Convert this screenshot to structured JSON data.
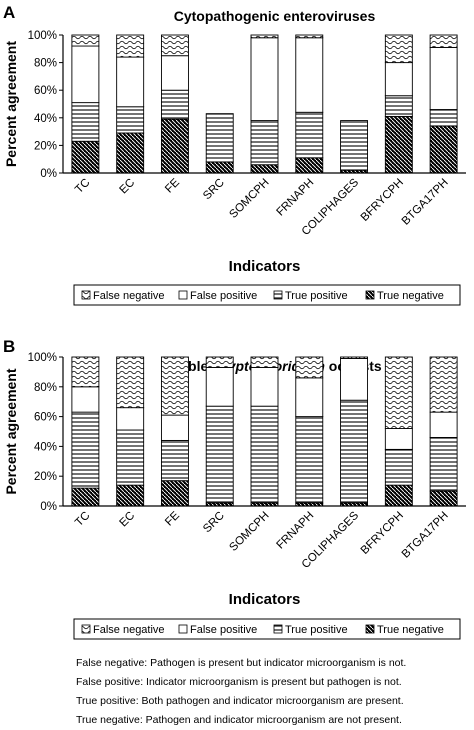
{
  "chart_data": [
    {
      "type": "bar",
      "stacked": true,
      "panel": "A",
      "title": "Cytopathogenic enteroviruses",
      "xlabel": "Indicators",
      "ylabel": "Percent agreement",
      "ylim": [
        0,
        100
      ],
      "yticks": [
        "0%",
        "20%",
        "40%",
        "60%",
        "80%",
        "100%"
      ],
      "categories": [
        "TC",
        "EC",
        "FE",
        "SRC",
        "SOMCPH",
        "FRNAPH",
        "COLIPHAGES",
        "BFRYCPH",
        "BTGA17PH"
      ],
      "series": [
        {
          "name": "True negative",
          "values": [
            23,
            29,
            39,
            8,
            6,
            11,
            2,
            41,
            34
          ]
        },
        {
          "name": "True positive",
          "values": [
            28,
            19,
            21,
            35,
            32,
            33,
            36,
            15,
            12
          ]
        },
        {
          "name": "False positive",
          "values": [
            41,
            36,
            25,
            0,
            60,
            54,
            0,
            24,
            45
          ]
        },
        {
          "name": "False negative",
          "values": [
            8,
            16,
            15,
            0,
            2,
            2,
            0,
            20,
            9
          ]
        }
      ],
      "legend": [
        "False negative",
        "False positive",
        "True positive",
        "True negative"
      ],
      "legend_position": "bottom"
    },
    {
      "type": "bar",
      "stacked": true,
      "panel": "B",
      "title_prefix": "Viable ",
      "title_italic": "Cryptosporidium",
      "title_suffix": " oocysts",
      "xlabel": "Indicators",
      "ylabel": "Percent agreement",
      "ylim": [
        0,
        100
      ],
      "yticks": [
        "0%",
        "20%",
        "40%",
        "60%",
        "80%",
        "100%"
      ],
      "categories": [
        "TC",
        "EC",
        "FE",
        "SRC",
        "SOMCPH",
        "FRNAPH",
        "COLIPHAGES",
        "BFRYCPH",
        "BTGA17PH"
      ],
      "series": [
        {
          "name": "True negative",
          "values": [
            12,
            14,
            17,
            2,
            2,
            2,
            2,
            14,
            10
          ]
        },
        {
          "name": "True positive",
          "values": [
            51,
            37,
            27,
            65,
            65,
            58,
            69,
            24,
            36
          ]
        },
        {
          "name": "False positive",
          "values": [
            17,
            15,
            17,
            26,
            26,
            26,
            28,
            14,
            17
          ]
        },
        {
          "name": "False negative",
          "values": [
            20,
            34,
            39,
            7,
            7,
            14,
            1,
            48,
            37
          ]
        }
      ],
      "legend": [
        "False negative",
        "False positive",
        "True positive",
        "True negative"
      ],
      "legend_position": "bottom"
    }
  ],
  "definitions": [
    "False negative: Pathogen is present but indicator microorganism is not.",
    "False positive: Indicator microorganism is present but pathogen is not.",
    "True positive: Both pathogen and indicator microorganism are present.",
    "True negative: Pathogen and indicator microorganism are not present."
  ]
}
